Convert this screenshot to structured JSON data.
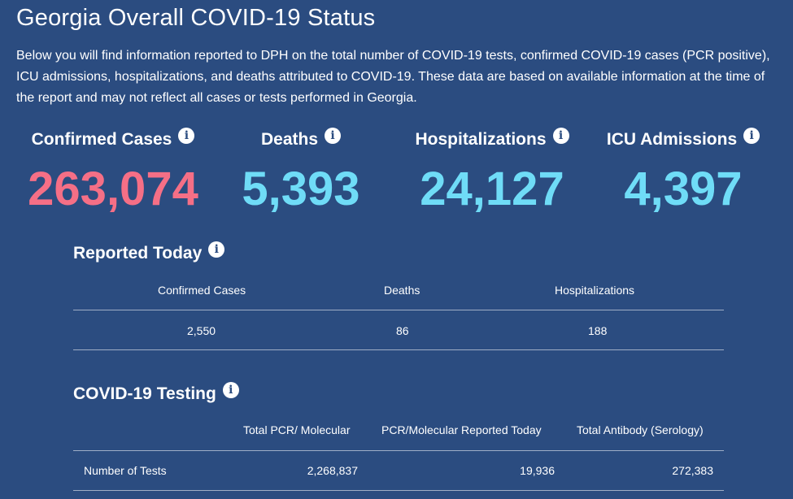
{
  "page": {
    "title": "Georgia Overall COVID-19 Status",
    "intro": "Below you will find information reported to DPH on the total number of COVID-19 tests, confirmed COVID-19 cases (PCR positive), ICU admissions, hospitalizations, and deaths attributed to COVID-19. These data are based on available information at the time of the report and may not reflect all cases or tests performed in Georgia."
  },
  "colors": {
    "background": "#2b4c80",
    "cases_red": "#f56f86",
    "stat_cyan": "#6fdcf7"
  },
  "stats": {
    "confirmed_cases": {
      "label": "Confirmed Cases",
      "value": "263,074"
    },
    "deaths": {
      "label": "Deaths",
      "value": "5,393"
    },
    "hospitalizations": {
      "label": "Hospitalizations",
      "value": "24,127"
    },
    "icu_admissions": {
      "label": "ICU Admissions",
      "value": "4,397"
    }
  },
  "info_icon": "i",
  "reported_today": {
    "title": "Reported Today",
    "headers": {
      "confirmed_cases": "Confirmed Cases",
      "deaths": "Deaths",
      "hospitalizations": "Hospitalizations"
    },
    "values": {
      "confirmed_cases": "2,550",
      "deaths": "86",
      "hospitalizations": "188"
    }
  },
  "testing": {
    "title": "COVID-19 Testing",
    "headers": {
      "total_pcr": "Total PCR/ Molecular",
      "pcr_today": "PCR/Molecular Reported Today",
      "total_antibody": "Total Antibody (Serology)"
    },
    "row": {
      "label": "Number of Tests",
      "total_pcr": "2,268,837",
      "pcr_today": "19,936",
      "total_antibody": "272,383"
    }
  }
}
